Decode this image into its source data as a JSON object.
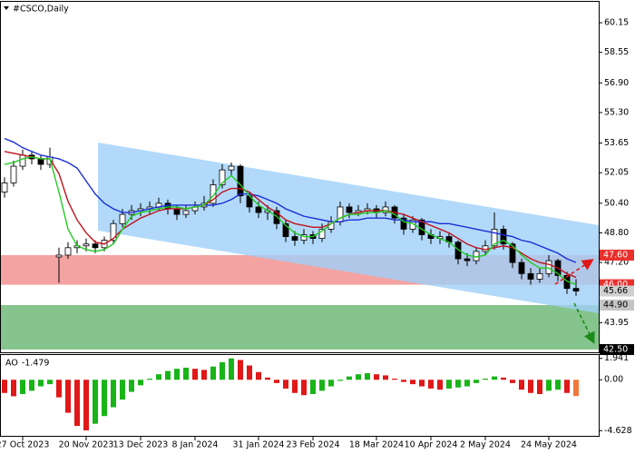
{
  "chart_data": [
    {
      "type": "candlestick",
      "title": "#CSCO,Daily",
      "categories": [
        null,
        null,
        "27 Oct 2023",
        null,
        null,
        null,
        null,
        null,
        null,
        "20 Nov 2023",
        null,
        null,
        null,
        null,
        null,
        "13 Dec 2023",
        null,
        null,
        null,
        null,
        null,
        "8 Jan 2024",
        null,
        null,
        null,
        null,
        null,
        null,
        "31 Jan 2024",
        null,
        null,
        null,
        null,
        null,
        "23 Feb 2024",
        null,
        null,
        null,
        null,
        null,
        null,
        "18 Mar 2024",
        null,
        null,
        null,
        null,
        null,
        "10 Apr 2024",
        null,
        null,
        null,
        null,
        null,
        "2 May 2024",
        null,
        null,
        null,
        null,
        null,
        null,
        "24 May 2024",
        null,
        null,
        null
      ],
      "open": [
        51.0,
        51.5,
        52.4,
        53.0,
        52.8,
        52.5,
        47.5,
        47.6,
        48.0,
        48.1,
        48.2,
        48.0,
        48.4,
        49.3,
        49.8,
        50.0,
        50.1,
        50.2,
        50.4,
        50.1,
        49.8,
        50.0,
        50.2,
        50.4,
        51.4,
        52.2,
        52.4,
        50.8,
        50.2,
        49.9,
        50.0,
        49.3,
        48.6,
        48.4,
        48.7,
        48.5,
        49.0,
        49.4,
        50.2,
        49.9,
        50.0,
        50.1,
        49.9,
        50.2,
        49.6,
        49.0,
        49.5,
        48.7,
        48.5,
        48.6,
        48.3,
        47.4,
        47.3,
        47.8,
        48.1,
        49.0,
        48.2,
        47.2,
        46.6,
        46.3,
        46.6,
        47.3,
        46.5,
        45.8
      ],
      "high": [
        51.8,
        52.7,
        53.3,
        53.2,
        53.0,
        53.4,
        48.0,
        48.3,
        48.4,
        48.5,
        48.4,
        48.6,
        49.5,
        50.1,
        50.3,
        50.4,
        50.5,
        50.7,
        50.6,
        50.3,
        50.3,
        50.5,
        50.8,
        51.7,
        52.5,
        52.6,
        52.5,
        51.0,
        50.5,
        50.3,
        50.2,
        49.5,
        48.9,
        49.0,
        48.9,
        49.3,
        49.7,
        50.5,
        50.4,
        50.3,
        50.4,
        50.3,
        50.5,
        50.3,
        49.8,
        49.7,
        49.6,
        49.0,
        48.9,
        48.8,
        48.4,
        47.7,
        48.0,
        48.4,
        49.9,
        49.2,
        48.3,
        47.4,
        46.9,
        46.9,
        47.6,
        47.4,
        46.7,
        46.3
      ],
      "low": [
        50.7,
        51.3,
        52.2,
        52.5,
        52.2,
        52.3,
        46.1,
        47.4,
        47.7,
        47.8,
        47.7,
        47.8,
        48.2,
        49.1,
        49.5,
        49.7,
        49.8,
        50.0,
        49.8,
        49.5,
        49.6,
        49.8,
        50.0,
        50.2,
        51.2,
        51.9,
        50.4,
        49.9,
        49.6,
        49.5,
        49.0,
        48.3,
        48.1,
        48.2,
        48.2,
        48.3,
        48.8,
        49.2,
        49.6,
        49.7,
        49.8,
        49.6,
        49.7,
        49.3,
        48.7,
        48.8,
        48.4,
        48.2,
        48.2,
        48.0,
        47.1,
        47.0,
        47.1,
        47.6,
        47.9,
        47.9,
        46.9,
        46.3,
        46.0,
        46.1,
        46.4,
        46.2,
        45.5,
        45.4
      ],
      "close": [
        51.5,
        52.4,
        53.0,
        52.8,
        52.5,
        52.9,
        47.6,
        48.0,
        48.1,
        48.2,
        48.0,
        48.4,
        49.3,
        49.8,
        50.0,
        50.1,
        50.2,
        50.4,
        50.1,
        49.8,
        50.0,
        50.2,
        50.4,
        51.4,
        52.2,
        52.4,
        50.8,
        50.2,
        49.9,
        50.0,
        49.3,
        48.6,
        48.4,
        48.7,
        48.5,
        49.0,
        49.4,
        50.2,
        49.9,
        50.0,
        50.1,
        49.9,
        50.2,
        49.6,
        49.0,
        49.5,
        48.7,
        48.5,
        48.6,
        48.3,
        47.4,
        47.3,
        47.8,
        48.1,
        49.0,
        48.2,
        47.2,
        46.6,
        46.3,
        46.6,
        47.3,
        46.5,
        45.8,
        45.66
      ],
      "up_color": "#ffffff",
      "down_color": "#000000",
      "wick_color": "#000000",
      "overlays": [
        {
          "color": "#1a2fd6",
          "values": [
            53.9,
            53.7,
            53.4,
            53.2,
            53.0,
            52.9,
            52.8,
            52.6,
            52.3,
            51.6,
            50.9,
            50.4,
            50.1,
            49.9,
            49.9,
            50.0,
            50.1,
            50.2,
            50.3,
            50.3,
            50.3,
            50.3,
            50.3,
            50.3,
            50.4,
            50.6,
            50.9,
            50.9,
            50.8,
            50.6,
            50.4,
            50.1,
            49.9,
            49.7,
            49.6,
            49.5,
            49.4,
            49.4,
            49.5,
            49.5,
            49.6,
            49.6,
            49.6,
            49.5,
            49.5,
            49.4,
            49.4,
            49.4,
            49.3,
            49.3,
            49.2,
            49.1,
            49.0,
            48.9,
            48.8,
            48.7,
            48.6,
            48.4,
            48.3,
            48.1,
            47.9,
            47.7,
            47.4,
            47.2
          ]
        },
        {
          "color": "#c0141e",
          "values": [
            53.2,
            53.1,
            53.0,
            52.9,
            52.8,
            52.8,
            52.0,
            50.5,
            49.5,
            48.8,
            48.3,
            48.2,
            48.5,
            49.0,
            49.3,
            49.6,
            49.8,
            50.0,
            50.1,
            50.1,
            50.1,
            50.2,
            50.3,
            50.6,
            51.0,
            51.2,
            51.2,
            51.0,
            50.6,
            50.2,
            49.9,
            49.5,
            49.3,
            49.2,
            49.1,
            49.1,
            49.3,
            49.6,
            49.8,
            49.9,
            50.0,
            50.0,
            50.0,
            49.9,
            49.8,
            49.6,
            49.4,
            49.2,
            49.0,
            48.8,
            48.5,
            48.2,
            48.0,
            47.9,
            48.0,
            48.1,
            48.0,
            47.7,
            47.4,
            47.2,
            47.1,
            46.9,
            46.6,
            46.4
          ]
        },
        {
          "color": "#22cc22",
          "values": [
            52.5,
            52.6,
            52.8,
            52.9,
            52.8,
            52.8,
            51.0,
            49.0,
            48.1,
            47.9,
            47.8,
            47.9,
            48.2,
            49.0,
            49.7,
            49.9,
            50.0,
            50.1,
            50.2,
            50.2,
            50.1,
            50.2,
            50.3,
            50.8,
            51.5,
            51.9,
            51.4,
            50.8,
            50.3,
            50.0,
            49.7,
            49.2,
            48.8,
            48.6,
            48.6,
            48.9,
            49.3,
            49.6,
            49.8,
            49.8,
            49.9,
            49.9,
            50.0,
            49.8,
            49.4,
            49.3,
            49.0,
            48.7,
            48.5,
            48.3,
            47.9,
            47.6,
            47.5,
            47.6,
            48.2,
            48.4,
            48.1,
            47.6,
            47.2,
            46.9,
            46.9,
            46.6,
            46.2,
            46.0
          ]
        }
      ],
      "ylim": [
        42.35,
        61.28
      ],
      "yticks": [
        60.15,
        58.55,
        {
          "value": 56.9,
          "label": "56.90"
        },
        {
          "value": 55.3,
          "label": "55.30"
        },
        53.65,
        52.05,
        {
          "value": 50.4,
          "label": "50.40"
        },
        {
          "value": 48.8,
          "label": "48.80"
        },
        {
          "value": 47.2,
          "label": "47.20"
        },
        43.95
      ],
      "zones": [
        {
          "from": 46.0,
          "to": 47.6,
          "color": "#f4a3a3"
        },
        {
          "from": 42.5,
          "to": 44.9,
          "color": "#85c48c"
        }
      ],
      "levels": [
        {
          "value": 47.6,
          "label": "47.60",
          "color": "#e8302c",
          "text_color": "#ffffff"
        },
        {
          "value": 46.0,
          "label": "46.00",
          "color": "#e8302c",
          "text_color": "#ffffff"
        },
        {
          "value": 45.66,
          "label": "45.66",
          "color": "#d0d0d0",
          "text_color": "#000000"
        },
        {
          "value": 44.9,
          "label": "44.90",
          "color": "#c4c4c4",
          "text_color": "#000000"
        },
        {
          "value": 42.5,
          "label": "42.50",
          "color": "#000000",
          "text_color": "#ffffff"
        }
      ]
    },
    {
      "type": "histogram",
      "name": "AO",
      "values": [
        -1.2,
        -1.5,
        -1.3,
        -1.0,
        -0.6,
        -0.4,
        -1.6,
        -3.0,
        -4.2,
        -4.6,
        -4.0,
        -3.3,
        -2.5,
        -1.8,
        -1.1,
        -0.5,
        0.1,
        0.5,
        0.8,
        1.0,
        1.1,
        1.0,
        0.9,
        1.2,
        1.6,
        1.941,
        1.8,
        1.3,
        0.7,
        0.2,
        -0.3,
        -0.8,
        -1.2,
        -1.4,
        -1.3,
        -1.0,
        -0.6,
        -0.1,
        0.3,
        0.5,
        0.6,
        0.5,
        0.4,
        0.1,
        -0.2,
        -0.4,
        -0.6,
        -0.8,
        -0.9,
        -0.8,
        -0.7,
        -0.6,
        -0.3,
        0.1,
        0.3,
        0.2,
        -0.3,
        -0.9,
        -1.2,
        -1.3,
        -1.0,
        -0.9,
        -1.2,
        -1.479
      ],
      "up_color": "#18b418",
      "down_color": "#e01818",
      "last_color": "#f07838",
      "ylim": [
        -5.1,
        2.25
      ],
      "yticks": [
        1.941,
        {
          "value": 0,
          "label": "0.00"
        },
        -4.628
      ]
    }
  ]
}
